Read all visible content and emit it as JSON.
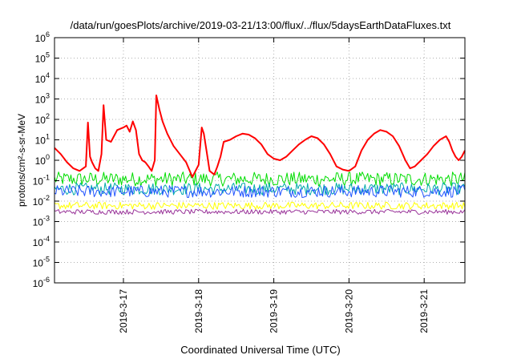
{
  "chart_data": {
    "type": "line",
    "title": "/data/run/goesPlots/archive/2019-03-21/13:00/flux/../flux/5daysEarthDataFluxes.txt",
    "xlabel": "Coordinated Universal Time (UTC)",
    "ylabel": "protons/cm²-s-sr-MeV",
    "yscale": "log",
    "ylim": [
      1e-06,
      1000000.0
    ],
    "xlim": [
      "2019-03-16 02:00",
      "2019-03-21 13:00"
    ],
    "grid": true,
    "legend": "none",
    "x_ticks": [
      {
        "t": "2019-03-17 00:00",
        "label": "2019-3-17"
      },
      {
        "t": "2019-03-18 00:00",
        "label": "2019-3-18"
      },
      {
        "t": "2019-03-19 00:00",
        "label": "2019-3-19"
      },
      {
        "t": "2019-03-20 00:00",
        "label": "2019-3-20"
      },
      {
        "t": "2019-03-21 00:00",
        "label": "2019-3-21"
      }
    ],
    "y_ticks": [
      {
        "value": 1e-06,
        "base": "10",
        "exp": "-6"
      },
      {
        "value": 1e-05,
        "base": "10",
        "exp": "-5"
      },
      {
        "value": 0.0001,
        "base": "10",
        "exp": "-4"
      },
      {
        "value": 0.001,
        "base": "10",
        "exp": "-3"
      },
      {
        "value": 0.01,
        "base": "10",
        "exp": "-2"
      },
      {
        "value": 0.1,
        "base": "10",
        "exp": "-1"
      },
      {
        "value": 1,
        "base": "10",
        "exp": "0"
      },
      {
        "value": 10,
        "base": "10",
        "exp": "1"
      },
      {
        "value": 100,
        "base": "10",
        "exp": "2"
      },
      {
        "value": 1000,
        "base": "10",
        "exp": "3"
      },
      {
        "value": 10000,
        "base": "10",
        "exp": "4"
      },
      {
        "value": 100000,
        "base": "10",
        "exp": "5"
      },
      {
        "value": 1000000,
        "base": "10",
        "exp": "6"
      }
    ],
    "series": [
      {
        "color": "#ff0000",
        "width": 2,
        "points": [
          [
            "2019-03-16 02:00",
            4
          ],
          [
            "2019-03-16 04:00",
            2
          ],
          [
            "2019-03-16 06:00",
            0.8
          ],
          [
            "2019-03-16 08:00",
            0.4
          ],
          [
            "2019-03-16 10:00",
            0.3
          ],
          [
            "2019-03-16 12:00",
            0.5
          ],
          [
            "2019-03-16 12:40",
            70
          ],
          [
            "2019-03-16 13:20",
            1.5
          ],
          [
            "2019-03-16 14:00",
            0.8
          ],
          [
            "2019-03-16 15:00",
            0.4
          ],
          [
            "2019-03-16 16:00",
            0.3
          ],
          [
            "2019-03-16 17:00",
            2
          ],
          [
            "2019-03-16 17:40",
            500
          ],
          [
            "2019-03-16 18:30",
            10
          ],
          [
            "2019-03-16 20:00",
            8
          ],
          [
            "2019-03-16 22:00",
            30
          ],
          [
            "2019-03-17 00:00",
            40
          ],
          [
            "2019-03-17 01:00",
            50
          ],
          [
            "2019-03-17 02:00",
            25
          ],
          [
            "2019-03-17 03:00",
            80
          ],
          [
            "2019-03-17 04:00",
            30
          ],
          [
            "2019-03-17 05:00",
            2
          ],
          [
            "2019-03-17 06:00",
            1
          ],
          [
            "2019-03-17 07:00",
            0.8
          ],
          [
            "2019-03-17 08:00",
            0.5
          ],
          [
            "2019-03-17 09:00",
            0.3
          ],
          [
            "2019-03-17 10:00",
            1
          ],
          [
            "2019-03-17 10:30",
            1500
          ],
          [
            "2019-03-17 11:30",
            300
          ],
          [
            "2019-03-17 12:30",
            80
          ],
          [
            "2019-03-17 14:00",
            20
          ],
          [
            "2019-03-17 16:00",
            5
          ],
          [
            "2019-03-17 18:00",
            2
          ],
          [
            "2019-03-17 20:00",
            0.8
          ],
          [
            "2019-03-17 22:00",
            0.15
          ],
          [
            "2019-03-17 23:00",
            0.3
          ],
          [
            "2019-03-18 00:00",
            0.6
          ],
          [
            "2019-03-18 01:00",
            40
          ],
          [
            "2019-03-18 01:40",
            20
          ],
          [
            "2019-03-18 02:30",
            3
          ],
          [
            "2019-03-18 03:30",
            0.3
          ],
          [
            "2019-03-18 05:00",
            0.2
          ],
          [
            "2019-03-18 06:00",
            0.5
          ],
          [
            "2019-03-18 07:00",
            1.5
          ],
          [
            "2019-03-18 08:00",
            8
          ],
          [
            "2019-03-18 10:00",
            10
          ],
          [
            "2019-03-18 12:00",
            15
          ],
          [
            "2019-03-18 14:00",
            20
          ],
          [
            "2019-03-18 16:00",
            18
          ],
          [
            "2019-03-18 18:00",
            12
          ],
          [
            "2019-03-18 20:00",
            6
          ],
          [
            "2019-03-18 22:00",
            2
          ],
          [
            "2019-03-19 00:00",
            1.2
          ],
          [
            "2019-03-19 02:00",
            1
          ],
          [
            "2019-03-19 04:00",
            1.5
          ],
          [
            "2019-03-19 06:00",
            3
          ],
          [
            "2019-03-19 08:00",
            6
          ],
          [
            "2019-03-19 10:00",
            10
          ],
          [
            "2019-03-19 12:00",
            15
          ],
          [
            "2019-03-19 14:00",
            12
          ],
          [
            "2019-03-19 16:00",
            6
          ],
          [
            "2019-03-19 18:00",
            2
          ],
          [
            "2019-03-19 20:00",
            0.5
          ],
          [
            "2019-03-19 22:00",
            0.35
          ],
          [
            "2019-03-20 00:00",
            0.3
          ],
          [
            "2019-03-20 02:00",
            0.5
          ],
          [
            "2019-03-20 04:00",
            3
          ],
          [
            "2019-03-20 06:00",
            10
          ],
          [
            "2019-03-20 08:00",
            20
          ],
          [
            "2019-03-20 10:00",
            30
          ],
          [
            "2019-03-20 12:00",
            25
          ],
          [
            "2019-03-20 14:00",
            15
          ],
          [
            "2019-03-20 16:00",
            5
          ],
          [
            "2019-03-20 18:00",
            1
          ],
          [
            "2019-03-20 19:30",
            0.4
          ],
          [
            "2019-03-20 21:00",
            0.5
          ],
          [
            "2019-03-20 23:00",
            1
          ],
          [
            "2019-03-21 01:00",
            2
          ],
          [
            "2019-03-21 03:00",
            5
          ],
          [
            "2019-03-21 05:00",
            10
          ],
          [
            "2019-03-21 07:00",
            15
          ],
          [
            "2019-03-21 08:00",
            8
          ],
          [
            "2019-03-21 09:00",
            3
          ],
          [
            "2019-03-21 10:00",
            1.5
          ],
          [
            "2019-03-21 11:00",
            1
          ],
          [
            "2019-03-21 12:00",
            1.5
          ],
          [
            "2019-03-21 13:00",
            3
          ]
        ]
      },
      {
        "color": "#00dd00",
        "width": 1,
        "noisy": true,
        "level": 0.12,
        "spread": 0.35
      },
      {
        "color": "#00aaaa",
        "width": 1,
        "noisy": true,
        "level": 0.04,
        "spread": 0.3
      },
      {
        "color": "#2255ff",
        "width": 1,
        "noisy": true,
        "level": 0.03,
        "spread": 0.3
      },
      {
        "color": "#ffff00",
        "width": 1,
        "noisy": true,
        "level": 0.006,
        "spread": 0.18
      },
      {
        "color": "#993399",
        "width": 1,
        "noisy": true,
        "level": 0.003,
        "spread": 0.12
      }
    ]
  }
}
